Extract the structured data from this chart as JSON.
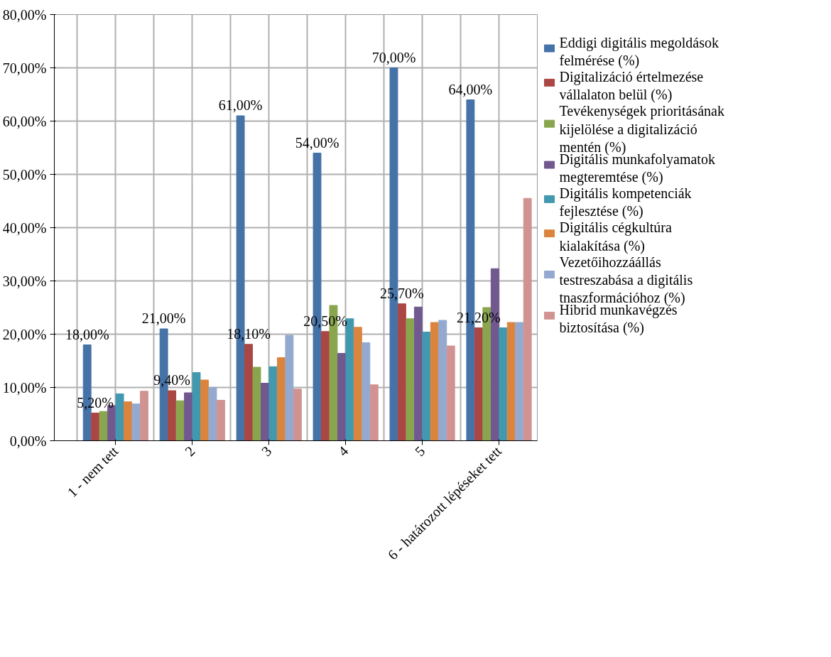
{
  "chart_data": {
    "type": "bar",
    "categories": [
      "1 - nem tett",
      "2",
      "3",
      "4",
      "5",
      "6 - határozott lépéseket tett"
    ],
    "ylim": [
      0,
      80
    ],
    "yticks": [
      {
        "value": 0,
        "label": "0,00%"
      },
      {
        "value": 10,
        "label": "10,00%"
      },
      {
        "value": 20,
        "label": "20,00%"
      },
      {
        "value": 30,
        "label": "30,00%"
      },
      {
        "value": 40,
        "label": "40,00%"
      },
      {
        "value": 50,
        "label": "50,00%"
      },
      {
        "value": 60,
        "label": "60,00%"
      },
      {
        "value": 70,
        "label": "70,00%"
      },
      {
        "value": 80,
        "label": "80,00%"
      }
    ],
    "grid": true,
    "legend": "right",
    "series": [
      {
        "name": "Eddigi digitális megoldások felmérése (%)",
        "color": "#4572a7",
        "values": [
          18,
          21,
          61,
          54,
          70,
          64
        ],
        "value_labels": [
          "18,00%",
          "21,00%",
          "61,00%",
          "54,00%",
          "70,00%",
          "64,00%"
        ]
      },
      {
        "name": "Digitalizáció értelmezése vállalaton belül (%)",
        "color": "#aa4643",
        "values": [
          5.2,
          9.4,
          18.1,
          20.5,
          25.7,
          21.2
        ],
        "value_labels": [
          "5,20%",
          "9,40%",
          "18,10%",
          "20,50%",
          "25,70%",
          "21,20%"
        ]
      },
      {
        "name": "Tevékenységek prioritásának kijelölése a digitalizáció mentén (%)",
        "color": "#89a54e",
        "values": [
          5.5,
          7.5,
          13.8,
          25.4,
          22.9,
          25
        ]
      },
      {
        "name": "Digitális munkafolyamatok megteremtése (%)",
        "color": "#71588f",
        "values": [
          6.6,
          9.0,
          10.8,
          16.4,
          25.1,
          32.3
        ]
      },
      {
        "name": "Digitális kompetenciák fejlesztése (%)",
        "color": "#4198af",
        "values": [
          8.8,
          12.8,
          13.9,
          22.9,
          20.4,
          21.2
        ]
      },
      {
        "name": "Digitális cégkultúra kialakítása (%)",
        "color": "#db843d",
        "values": [
          7.3,
          11.4,
          15.6,
          21.3,
          22.2,
          22.2
        ]
      },
      {
        "name": "Vezetőihozzáállás testreszabása a digitális tnaszformációhoz (%)",
        "color": "#93a9cf",
        "values": [
          6.9,
          10.0,
          19.8,
          18.4,
          22.6,
          22.2
        ]
      },
      {
        "name": "Hibrid munkavégzés biztosítása (%)",
        "color": "#d19392",
        "values": [
          9.3,
          7.6,
          9.7,
          10.5,
          17.8,
          45.5
        ]
      }
    ]
  }
}
